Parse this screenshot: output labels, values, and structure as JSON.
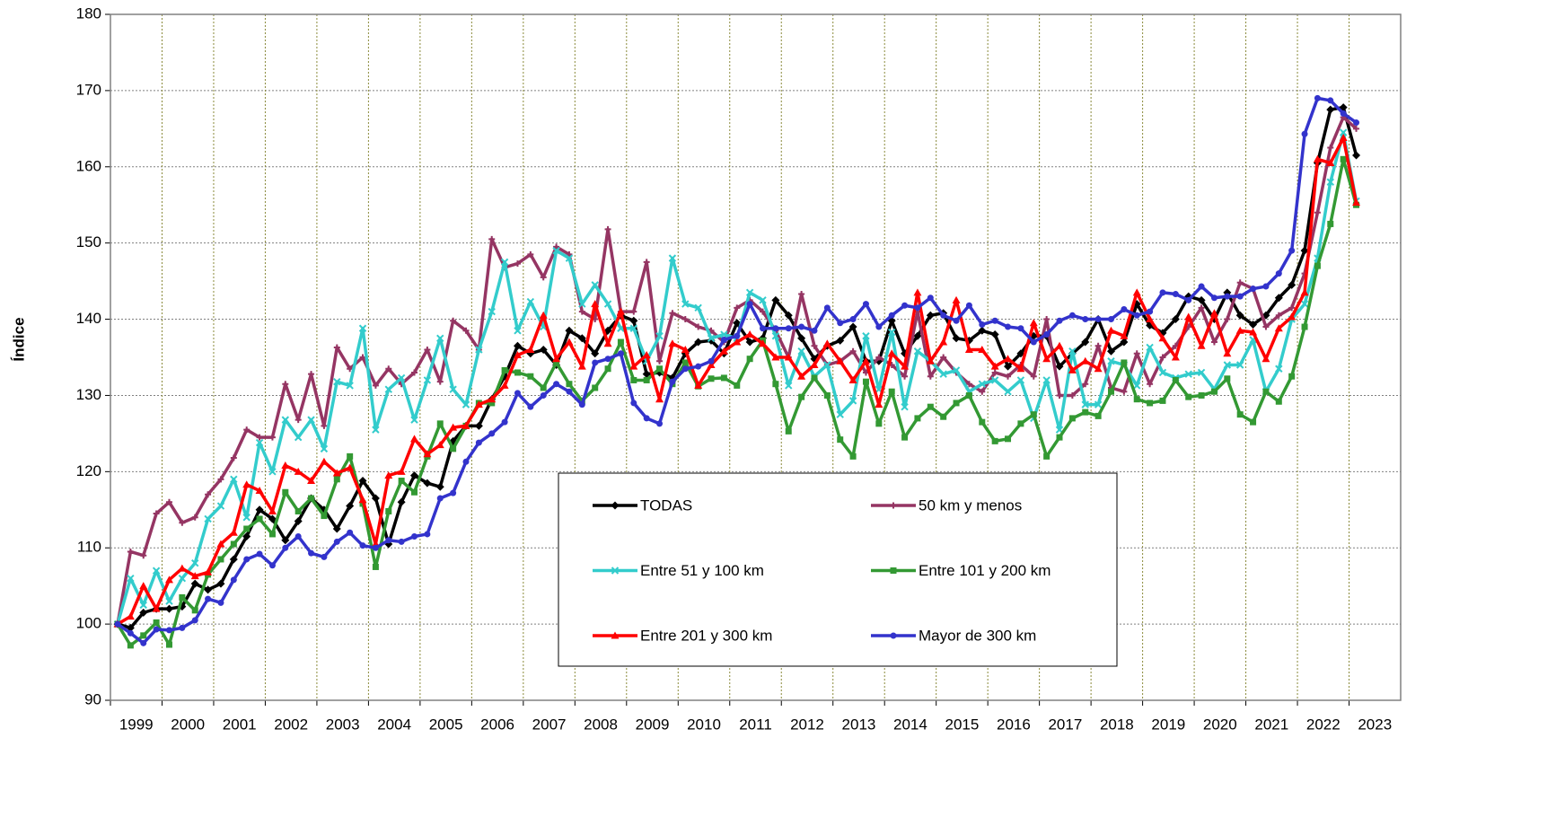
{
  "chart_data": {
    "type": "line",
    "y_label": "Índice",
    "categories": [
      1999,
      null,
      null,
      null,
      2000,
      null,
      null,
      null,
      2001,
      null,
      null,
      null,
      2002,
      null,
      null,
      null,
      2003,
      null,
      null,
      null,
      2004,
      null,
      null,
      null,
      2005,
      null,
      null,
      null,
      2006,
      null,
      null,
      null,
      2007,
      null,
      null,
      null,
      2008,
      null,
      null,
      null,
      2009,
      null,
      null,
      null,
      2010,
      null,
      null,
      null,
      2011,
      null,
      null,
      null,
      2012,
      null,
      null,
      null,
      2013,
      null,
      null,
      null,
      2014,
      null,
      null,
      null,
      2015,
      null,
      null,
      null,
      2016,
      null,
      null,
      null,
      2017,
      null,
      null,
      null,
      2018,
      null,
      null,
      null,
      2019,
      null,
      null,
      null,
      2020,
      null,
      null,
      null,
      2021,
      null,
      null,
      null,
      2022,
      null,
      null,
      null,
      2023
    ],
    "ylim": [
      90,
      180
    ],
    "yticks": [
      90,
      100,
      110,
      120,
      130,
      140,
      150,
      160,
      170,
      180
    ],
    "grid": true,
    "legend": "center",
    "series": [
      {
        "name": "TODAS",
        "color": "#000000",
        "marker": "diamond",
        "values": [
          100,
          99.5,
          101.5,
          102,
          102,
          102.3,
          105.3,
          104.5,
          105.3,
          108.5,
          111.5,
          115,
          113.8,
          111,
          113.5,
          116.5,
          115,
          112.5,
          115.5,
          118.8,
          116.5,
          110.5,
          116,
          119.5,
          118.5,
          118,
          124,
          126,
          126,
          129.5,
          132.5,
          136.5,
          135.5,
          136,
          134,
          138.5,
          137.5,
          135.5,
          138.5,
          140.5,
          139.8,
          132.8,
          133,
          132.3,
          135.5,
          137,
          137.2,
          135.5,
          139.5,
          137,
          137.5,
          142.5,
          140.5,
          137.5,
          134.8,
          136.5,
          137.2,
          139,
          134.5,
          134.5,
          139.8,
          135.5,
          137.8,
          140.5,
          140.8,
          137.5,
          137.2,
          138.5,
          138,
          133.8,
          135.5,
          137.8,
          137.8,
          133.8,
          135.5,
          137,
          140,
          135.8,
          137,
          142,
          139.2,
          138.2,
          140,
          143,
          142.5,
          140,
          143.5,
          140.5,
          139.3,
          140.5,
          142.8,
          144.5,
          149,
          160.5,
          167.5,
          167.8,
          161.5
        ]
      },
      {
        "name": "50 km y menos",
        "color": "#953563",
        "marker": "plus",
        "values": [
          100,
          109.5,
          109,
          114.5,
          116,
          113.3,
          114,
          117,
          119,
          121.8,
          125.5,
          124.5,
          124.5,
          131.5,
          126.8,
          132.8,
          126,
          136.3,
          133.5,
          135,
          131.3,
          133.5,
          131.5,
          133,
          136,
          131.8,
          139.8,
          138.5,
          136,
          150.5,
          146.8,
          147.3,
          148.5,
          145.5,
          149.5,
          148.5,
          141,
          140,
          151.8,
          141,
          141,
          147.5,
          134.5,
          140.8,
          140,
          139,
          138.5,
          137,
          141.5,
          142.5,
          141,
          138.5,
          135,
          143.3,
          136.5,
          134,
          134.5,
          135.8,
          133,
          135,
          134,
          132.5,
          141,
          132.5,
          135,
          133,
          131.5,
          130.5,
          133,
          132.5,
          134,
          132.5,
          140,
          130,
          130,
          131.5,
          136.5,
          131,
          130.5,
          135.5,
          131.5,
          135,
          136.5,
          139,
          141.5,
          137,
          140,
          144.8,
          144,
          139,
          140.5,
          141.5,
          146,
          154,
          162.5,
          166.5,
          165
        ]
      },
      {
        "name": "Entre 51 y 100 km",
        "color": "#33cccc",
        "marker": "cross",
        "values": [
          100,
          106,
          102.5,
          107,
          103,
          106,
          108,
          113.8,
          115.5,
          119,
          114,
          123.8,
          120,
          126.8,
          124.5,
          126.8,
          123,
          131.8,
          131.3,
          138.8,
          125.5,
          130.8,
          132.3,
          126.8,
          132,
          137.5,
          130.8,
          128.8,
          136,
          141,
          147.5,
          138.5,
          142.3,
          139,
          149,
          148,
          142,
          144.5,
          142,
          138.8,
          138.8,
          134.5,
          137.8,
          148,
          142,
          141.5,
          137.5,
          138,
          137.5,
          143.5,
          142.5,
          137.8,
          131.3,
          135.8,
          132.5,
          134,
          127.5,
          129.3,
          137.8,
          130.8,
          138.3,
          128.5,
          135.8,
          134.5,
          132.8,
          133.3,
          130.5,
          131.5,
          132,
          130.5,
          132,
          127,
          132,
          125.5,
          135.8,
          128.8,
          128.8,
          134.5,
          134,
          131.3,
          136.3,
          133,
          132.3,
          132.8,
          133,
          130.8,
          134,
          134,
          137.3,
          130.5,
          133.5,
          140,
          142,
          148,
          158,
          164.5,
          155.5
        ]
      },
      {
        "name": "Entre 101 y 200 km",
        "color": "#339933",
        "marker": "square",
        "values": [
          100,
          97.2,
          98.5,
          100.2,
          97.3,
          103.5,
          101.8,
          106.5,
          108.5,
          110.5,
          112.5,
          113.8,
          111.8,
          117.3,
          114.8,
          116.5,
          114.2,
          119,
          122,
          115.8,
          107.5,
          114.8,
          118.8,
          117.3,
          122,
          126.3,
          123,
          126,
          129,
          129,
          133.3,
          133,
          132.5,
          131,
          134.3,
          131.5,
          129.3,
          131,
          133.5,
          137,
          132,
          132,
          133.5,
          131.5,
          134.3,
          131.2,
          132.2,
          132.3,
          131.3,
          134.8,
          137.2,
          131.5,
          125.3,
          129.8,
          132.3,
          130,
          124.2,
          122,
          131.8,
          126.3,
          130.5,
          124.5,
          127,
          128.5,
          127.2,
          129,
          130,
          126.5,
          124,
          124.3,
          126.3,
          127.5,
          122,
          124.5,
          127,
          127.8,
          127.3,
          130.5,
          134.3,
          129.5,
          129,
          129.3,
          132,
          129.8,
          130,
          130.5,
          132.2,
          127.5,
          126.5,
          130.5,
          129.2,
          132.5,
          139,
          147,
          152.5,
          161,
          155
        ]
      },
      {
        "name": "Entre 201 y 300 km",
        "color": "#ff0000",
        "marker": "triangle",
        "values": [
          100,
          101,
          105,
          102,
          105.8,
          107.3,
          106.3,
          106.8,
          110.5,
          112,
          118.3,
          117.5,
          114.8,
          120.8,
          120,
          118.8,
          121.3,
          119.8,
          120.5,
          116.3,
          110.5,
          119.5,
          120,
          124.3,
          122.3,
          123.5,
          125.8,
          126,
          128.8,
          129.5,
          131.3,
          135.3,
          136,
          140.5,
          134.8,
          137,
          133.8,
          142,
          136.8,
          141,
          133.8,
          135.3,
          129.5,
          136.8,
          136,
          131.3,
          134,
          135.8,
          137,
          138,
          136.8,
          135,
          135,
          132.5,
          134,
          136.8,
          134.5,
          132,
          134.5,
          128.8,
          135.5,
          133.8,
          143.5,
          134.5,
          137,
          142.5,
          136,
          136,
          133.8,
          134.8,
          133.5,
          139.5,
          134.8,
          136.5,
          133.3,
          134.5,
          133.5,
          138.5,
          137.8,
          143.5,
          140,
          137.5,
          135,
          140.3,
          136.5,
          140.8,
          135.5,
          138.5,
          138.3,
          134.8,
          138.8,
          140.3,
          143.5,
          161,
          160.5,
          163.8,
          155.3
        ]
      },
      {
        "name": "Mayor de 300 km",
        "color": "#3333cc",
        "marker": "circle",
        "values": [
          100,
          98.8,
          97.5,
          99.3,
          99.2,
          99.5,
          100.5,
          103.3,
          102.8,
          105.8,
          108.5,
          109.2,
          107.7,
          110,
          111.5,
          109.3,
          108.8,
          110.8,
          112,
          110.3,
          110,
          111,
          110.8,
          111.5,
          111.8,
          116.5,
          117.2,
          121.3,
          123.8,
          125,
          126.5,
          130.3,
          128.5,
          130,
          131.5,
          130.5,
          128.8,
          134.3,
          134.8,
          135.5,
          129,
          127,
          126.3,
          131.8,
          133.5,
          133.8,
          134.5,
          137.3,
          137.8,
          142,
          138.8,
          138.8,
          138.8,
          139,
          138.5,
          141.5,
          139.5,
          140,
          142,
          139,
          140.5,
          141.8,
          141.5,
          142.8,
          140.5,
          139.8,
          141.8,
          139.3,
          139.8,
          139,
          138.8,
          137,
          138,
          139.8,
          140.5,
          140,
          140,
          140,
          141.3,
          140.5,
          141,
          143.5,
          143.3,
          142.5,
          144.3,
          142.8,
          143,
          143,
          144,
          144.3,
          146,
          149,
          164.3,
          169,
          168.7,
          167,
          165.8
        ]
      }
    ]
  }
}
